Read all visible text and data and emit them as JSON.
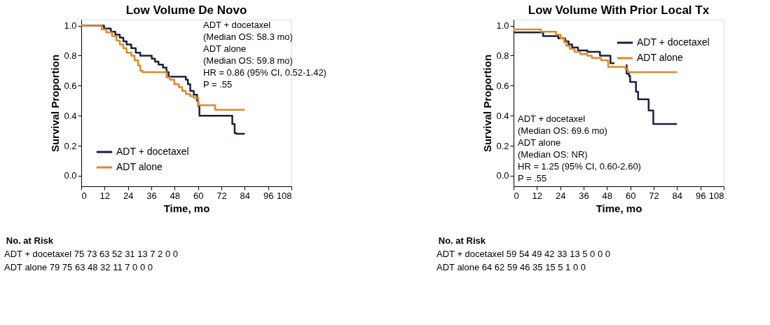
{
  "chart_data": [
    {
      "type": "step",
      "title": "Low Volume De Novo",
      "xlabel": "Time, mo",
      "ylabel": "Survival Proportion",
      "xlim": [
        0,
        108
      ],
      "xticks": [
        0,
        12,
        24,
        36,
        48,
        60,
        72,
        84,
        96,
        108
      ],
      "ylim": [
        -0.07,
        1.04
      ],
      "yticks": [
        {
          "value": 0,
          "label": "0.0"
        },
        {
          "value": 0.2,
          "label": "0.2"
        },
        {
          "value": 0.4,
          "label": "0.4"
        },
        {
          "value": 0.6,
          "label": "0.6"
        },
        {
          "value": 0.8,
          "label": "0.8"
        },
        {
          "value": 1,
          "label": "1.0"
        }
      ],
      "legend": "bottom left",
      "grid": false,
      "series": [
        {
          "name": "ADT + docetaxel",
          "color": "#1b1f3f",
          "x": [
            0,
            11.7,
            15.2,
            17.5,
            19.8,
            21.6,
            23.3,
            25.7,
            28.0,
            30.3,
            36.2,
            37.9,
            39.7,
            42.0,
            43.8,
            44.9,
            53.7,
            54.8,
            56.0,
            57.8,
            59.5,
            60.1,
            60.7,
            77.6,
            78.8,
            79.6,
            84
          ],
          "values": [
            1.0,
            0.98,
            0.96,
            0.94,
            0.92,
            0.895,
            0.875,
            0.85,
            0.82,
            0.8,
            0.78,
            0.76,
            0.74,
            0.72,
            0.69,
            0.66,
            0.64,
            0.61,
            0.565,
            0.54,
            0.5,
            0.465,
            0.4,
            0.345,
            0.285,
            0.28,
            0.28
          ]
        },
        {
          "name": "ADT alone",
          "color": "#e0882a",
          "x": [
            0,
            10.5,
            12.8,
            15.8,
            18.1,
            19.8,
            21.6,
            23.3,
            25.7,
            27.4,
            29.2,
            30.3,
            31.5,
            43.8,
            45.5,
            47.8,
            50.2,
            51.9,
            53.7,
            56.0,
            57.8,
            60.1,
            68.8,
            84
          ],
          "values": [
            1.0,
            0.975,
            0.955,
            0.93,
            0.9,
            0.875,
            0.85,
            0.82,
            0.8,
            0.77,
            0.735,
            0.7,
            0.69,
            0.655,
            0.64,
            0.61,
            0.59,
            0.565,
            0.545,
            0.53,
            0.52,
            0.47,
            0.44,
            0.44
          ]
        }
      ],
      "annotations": [
        "ADT + docetaxel\n(Median OS: 58.3 mo)\nADT alone\n(Median OS: 59.8 mo)\nHR = 0.86 (95% CI, 0.52-1.42)\n                P = .55",
        "No. at Risk",
        "ADT + docetaxel 75 73 63 52 31 13 7 2 0 0",
        "ADT alone 79 75 63 48 32 11 7 0 0 0"
      ]
    },
    {
      "type": "step",
      "title": "Low Volume With Prior Local Tx",
      "xlabel": "Time, mo",
      "ylabel": "Survival Proportion",
      "xlim": [
        0,
        108
      ],
      "xticks": [
        0,
        12,
        24,
        36,
        48,
        60,
        72,
        84,
        96,
        108
      ],
      "ylim": [
        -0.07,
        1.04
      ],
      "yticks": [
        {
          "value": 0,
          "label": "0.0"
        },
        {
          "value": 0.2,
          "label": "0.2"
        },
        {
          "value": 0.4,
          "label": "0.4"
        },
        {
          "value": 0.6,
          "label": "0.6"
        },
        {
          "value": 0.8,
          "label": "0.8"
        },
        {
          "value": 1,
          "label": "1.0"
        }
      ],
      "legend": "top right",
      "grid": false,
      "series": [
        {
          "name": "ADT + docetaxel",
          "color": "#1b1f3f",
          "x": [
            0,
            15.2,
            23.0,
            26.5,
            28.3,
            30.1,
            33.1,
            37.9,
            44.4,
            49.8,
            58.1,
            59.3,
            59.9,
            62.9,
            64.0,
            69.4,
            71.8,
            84
          ],
          "values": [
            0.955,
            0.93,
            0.915,
            0.895,
            0.875,
            0.855,
            0.835,
            0.825,
            0.8,
            0.75,
            0.68,
            0.665,
            0.625,
            0.56,
            0.51,
            0.435,
            0.345,
            0.345
          ]
        },
        {
          "name": "ADT alone",
          "color": "#e0882a",
          "x": [
            0,
            14.0,
            21.8,
            24.2,
            26.0,
            27.1,
            28.9,
            31.3,
            34.3,
            37.9,
            40.2,
            45.0,
            48.6,
            57.5,
            58.7,
            84
          ],
          "values": [
            0.975,
            0.96,
            0.94,
            0.915,
            0.89,
            0.865,
            0.845,
            0.825,
            0.81,
            0.8,
            0.785,
            0.77,
            0.725,
            0.71,
            0.69,
            0.69
          ]
        }
      ],
      "annotations": [
        "ADT + docetaxel\n(Median OS: 69.6 mo)\nADT alone\n(Median OS: NR)\nHR = 1.25 (95% CI, 0.60-2.60)\n                P = .55",
        "No. at Risk",
        "ADT + docetaxel 59 54 49 42 33 13 5 0 0 0",
        "ADT alone 64 62 59 46 35 15 5 1 0 0"
      ]
    }
  ]
}
